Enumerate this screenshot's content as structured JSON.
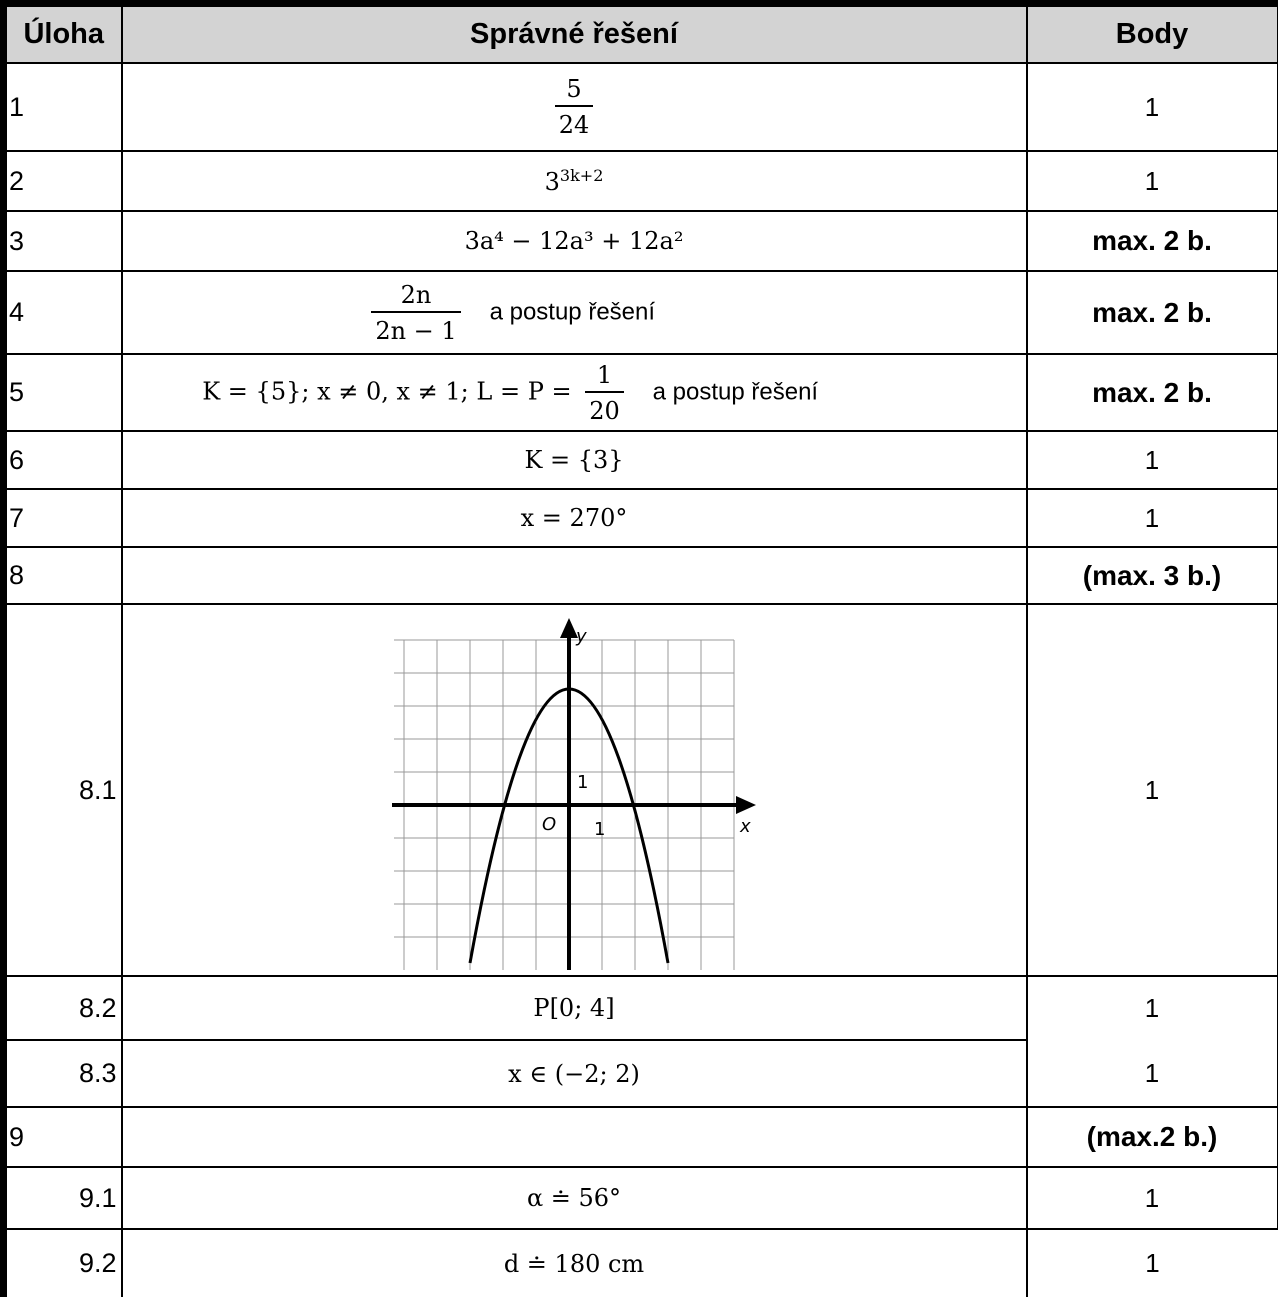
{
  "header": {
    "task": "Úloha",
    "solution": "Správné řešení",
    "points": "Body"
  },
  "rows": {
    "r1": {
      "task": "1",
      "num": "5",
      "den": "24",
      "points": "1"
    },
    "r2": {
      "task": "2",
      "base": "3",
      "exp": "3k+2",
      "points": "1"
    },
    "r3": {
      "task": "3",
      "expr": "3a⁴ − 12a³ + 12a²",
      "points": "max. 2 b."
    },
    "r4": {
      "task": "4",
      "num": "2n",
      "den": "2n − 1",
      "suffix": "a postup řešení",
      "points": "max. 2 b."
    },
    "r5": {
      "task": "5",
      "prefix": "K = {5}; x ≠ 0, x ≠ 1; L = P =",
      "num": "1",
      "den": "20",
      "suffix": "a postup řešení",
      "points": "max. 2 b."
    },
    "r6": {
      "task": "6",
      "expr": "K = {3}",
      "points": "1"
    },
    "r7": {
      "task": "7",
      "expr": "x = 270°",
      "points": "1"
    },
    "r8": {
      "task": "8",
      "points": "(max. 3 b.)"
    },
    "r81": {
      "task": "8.1",
      "points": "1",
      "graph": {
        "y_label": "y",
        "x_label": "x",
        "origin": "O",
        "tick_x": "1",
        "tick_y": "1"
      }
    },
    "r82": {
      "task": "8.2",
      "expr": "P[0; 4]",
      "points": "1"
    },
    "r83": {
      "task": "8.3",
      "expr": "x ∈ (−2; 2)",
      "points": "1"
    },
    "r9": {
      "task": "9",
      "points": "(max.2 b.)"
    },
    "r91": {
      "task": "9.1",
      "expr": "α ≐ 56°",
      "points": "1"
    },
    "r92": {
      "task": "9.2",
      "expr": "d ≐ 180 cm",
      "points": "1"
    }
  }
}
